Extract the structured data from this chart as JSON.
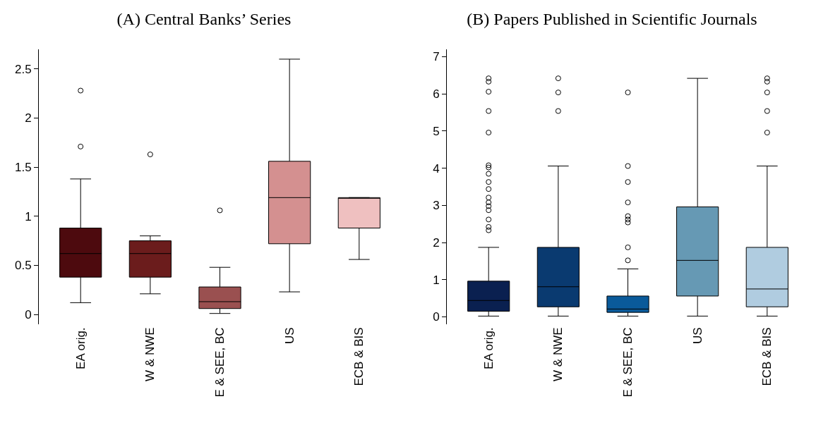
{
  "chart_data": [
    {
      "type": "box",
      "title": "(A) Central Banks’ Series",
      "categories": [
        "EA orig.",
        "W & NWE",
        "E & SEE, BC",
        "US",
        "ECB & BIS"
      ],
      "colors": [
        "#4d0a0e",
        "#6b1c1c",
        "#9a5050",
        "#d49090",
        "#efc0c0"
      ],
      "boxes": [
        {
          "low": 0.12,
          "q1": 0.38,
          "median": 0.62,
          "q3": 0.88,
          "high": 1.38,
          "outliers": [
            1.71,
            2.28
          ]
        },
        {
          "low": 0.21,
          "q1": 0.38,
          "median": 0.62,
          "q3": 0.75,
          "high": 0.8,
          "outliers": [
            1.63
          ]
        },
        {
          "low": 0.01,
          "q1": 0.06,
          "median": 0.13,
          "q3": 0.28,
          "high": 0.48,
          "outliers": [
            1.06
          ]
        },
        {
          "low": 0.23,
          "q1": 0.72,
          "median": 1.19,
          "q3": 1.56,
          "high": 2.6
        },
        {
          "low": 0.56,
          "q1": 0.88,
          "median": 1.19,
          "q3": 1.19,
          "high": 1.19
        }
      ],
      "ylim": [
        -0.1,
        2.7
      ],
      "yticks": [
        0,
        0.5,
        1,
        1.5,
        2,
        2.5
      ]
    },
    {
      "type": "box",
      "title": "(B) Papers Published in Scientific Journals",
      "categories": [
        "EA orig.",
        "W & NWE",
        "E & SEE, BC",
        "US",
        "ECB & BIS"
      ],
      "colors": [
        "#0a2050",
        "#0a3a70",
        "#0a5a9a",
        "#6699b4",
        "#b0cce0"
      ],
      "boxes": [
        {
          "low": 0.02,
          "q1": 0.15,
          "median": 0.44,
          "q3": 0.96,
          "high": 1.87,
          "outliers": [
            2.33,
            2.42,
            2.62,
            2.87,
            2.98,
            3.08,
            3.21,
            3.44,
            3.63,
            3.85,
            4.02,
            4.08,
            4.96,
            5.54,
            6.06,
            6.33,
            6.42
          ]
        },
        {
          "low": 0.02,
          "q1": 0.27,
          "median": 0.81,
          "q3": 1.87,
          "high": 4.06,
          "outliers": [
            5.54,
            6.04,
            6.42
          ]
        },
        {
          "low": 0.02,
          "q1": 0.12,
          "median": 0.21,
          "q3": 0.56,
          "high": 1.29,
          "outliers": [
            1.52,
            1.87,
            2.54,
            2.62,
            2.71,
            3.08,
            3.63,
            4.06,
            6.04
          ]
        },
        {
          "low": 0.02,
          "q1": 0.56,
          "median": 1.52,
          "q3": 2.96,
          "high": 6.42
        },
        {
          "low": 0.02,
          "q1": 0.27,
          "median": 0.75,
          "q3": 1.87,
          "high": 4.06,
          "outliers": [
            4.96,
            5.54,
            6.04,
            6.33,
            6.42
          ]
        }
      ],
      "ylim": [
        -0.2,
        7.2
      ],
      "yticks": [
        0,
        1,
        2,
        3,
        4,
        5,
        6,
        7
      ]
    }
  ]
}
